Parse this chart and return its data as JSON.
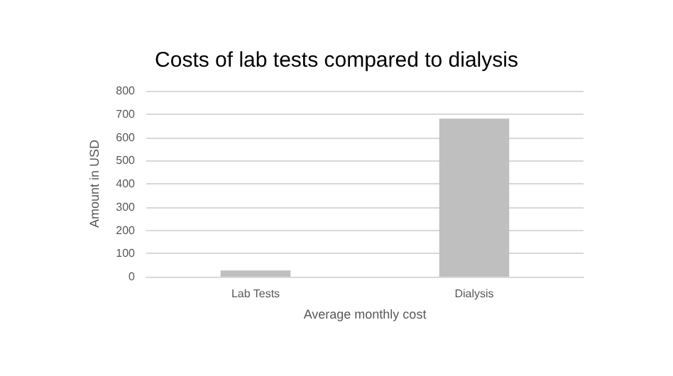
{
  "chart_data": {
    "type": "bar",
    "title": "Costs of lab tests compared to dialysis",
    "xlabel": "Average monthly cost",
    "ylabel": "Amount in USD",
    "categories": [
      "Lab Tests",
      "Dialysis"
    ],
    "values": [
      27,
      680
    ],
    "color": "#bfbfbf",
    "ylim": [
      0,
      800
    ],
    "yticks": [
      0,
      100,
      200,
      300,
      400,
      500,
      600,
      700,
      800
    ],
    "grid": "y"
  }
}
